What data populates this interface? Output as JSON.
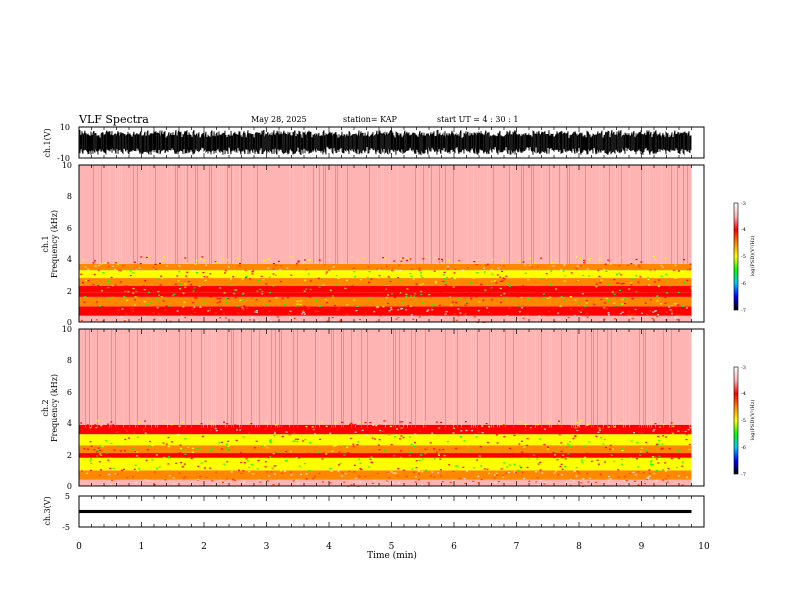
{
  "header": {
    "title": "VLF Spectra",
    "date": "May 28, 2025",
    "station": "station= KAP",
    "start": "start  UT =  4 : 30 : 1"
  },
  "colorbar": {
    "label": "log(PSD)(V²/Hz)",
    "ticks": [
      "-3",
      "-4",
      "-5",
      "-6",
      "-7"
    ],
    "colors": [
      "#000000",
      "#0000ff",
      "#00c8ff",
      "#00ff00",
      "#ffff00",
      "#ff8800",
      "#ff0000",
      "#ffb4b4",
      "#ffffff"
    ]
  },
  "chart_data": [
    {
      "type": "line",
      "panel": "ch1-waveform",
      "ylabel": "ch.1(V)",
      "ylim": [
        -10,
        10
      ],
      "ytick_labels": [
        "10",
        "-10"
      ],
      "xlim": [
        0,
        10
      ],
      "x_end": 9.8,
      "description_values": {
        "typical_amplitude_V": 8
      }
    },
    {
      "type": "heatmap",
      "panel": "ch1-spectrogram",
      "ylabel_lines": [
        "ch.1",
        "Frequency (kHz)"
      ],
      "ylim": [
        0,
        10
      ],
      "ytick_labels": [
        "0",
        "2",
        "4",
        "6",
        "8",
        "10"
      ],
      "xlim": [
        0,
        10
      ],
      "x_end": 9.8,
      "bands_kHz": [
        {
          "from": 0,
          "to": 0.4,
          "level": -3.5
        },
        {
          "from": 0.4,
          "to": 1.0,
          "level": -3.8
        },
        {
          "from": 1.0,
          "to": 1.6,
          "level": -4.6
        },
        {
          "from": 1.6,
          "to": 1.9,
          "level": -4.1
        },
        {
          "from": 1.9,
          "to": 2.3,
          "level": -3.9
        },
        {
          "from": 2.3,
          "to": 2.8,
          "level": -4.6
        },
        {
          "from": 2.8,
          "to": 3.3,
          "level": -4.8
        },
        {
          "from": 3.3,
          "to": 3.7,
          "level": -4.3
        },
        {
          "from": 3.7,
          "to": 10,
          "level": -3.4
        }
      ]
    },
    {
      "type": "heatmap",
      "panel": "ch2-spectrogram",
      "ylabel_lines": [
        "ch.2",
        "Frequency (kHz)"
      ],
      "ylim": [
        0,
        10
      ],
      "ytick_labels": [
        "0",
        "2",
        "4",
        "6",
        "8",
        "10"
      ],
      "xlim": [
        0,
        10
      ],
      "x_end": 9.8,
      "bands_kHz": [
        {
          "from": 0,
          "to": 0.4,
          "level": -3.5
        },
        {
          "from": 0.4,
          "to": 1.0,
          "level": -4.3
        },
        {
          "from": 1.0,
          "to": 1.8,
          "level": -4.8
        },
        {
          "from": 1.8,
          "to": 2.1,
          "level": -4.0
        },
        {
          "from": 2.1,
          "to": 2.6,
          "level": -4.7
        },
        {
          "from": 2.6,
          "to": 3.3,
          "level": -4.9
        },
        {
          "from": 3.3,
          "to": 3.9,
          "level": -4.2
        },
        {
          "from": 3.9,
          "to": 10,
          "level": -3.4
        }
      ]
    },
    {
      "type": "line",
      "panel": "ch3-waveform",
      "ylabel": "ch.3(V)",
      "ylim": [
        -5,
        5
      ],
      "ytick_labels": [
        "5",
        "-5"
      ],
      "xlim": [
        0,
        10
      ],
      "x_end": 9.8,
      "description_values": {
        "center_V": 0,
        "amplitude_V": 0.5
      }
    }
  ],
  "xaxis": {
    "label": "Time (min)",
    "tick_labels": [
      "0",
      "1",
      "2",
      "3",
      "4",
      "5",
      "6",
      "7",
      "8",
      "9",
      "10"
    ],
    "range": [
      0,
      10
    ]
  }
}
